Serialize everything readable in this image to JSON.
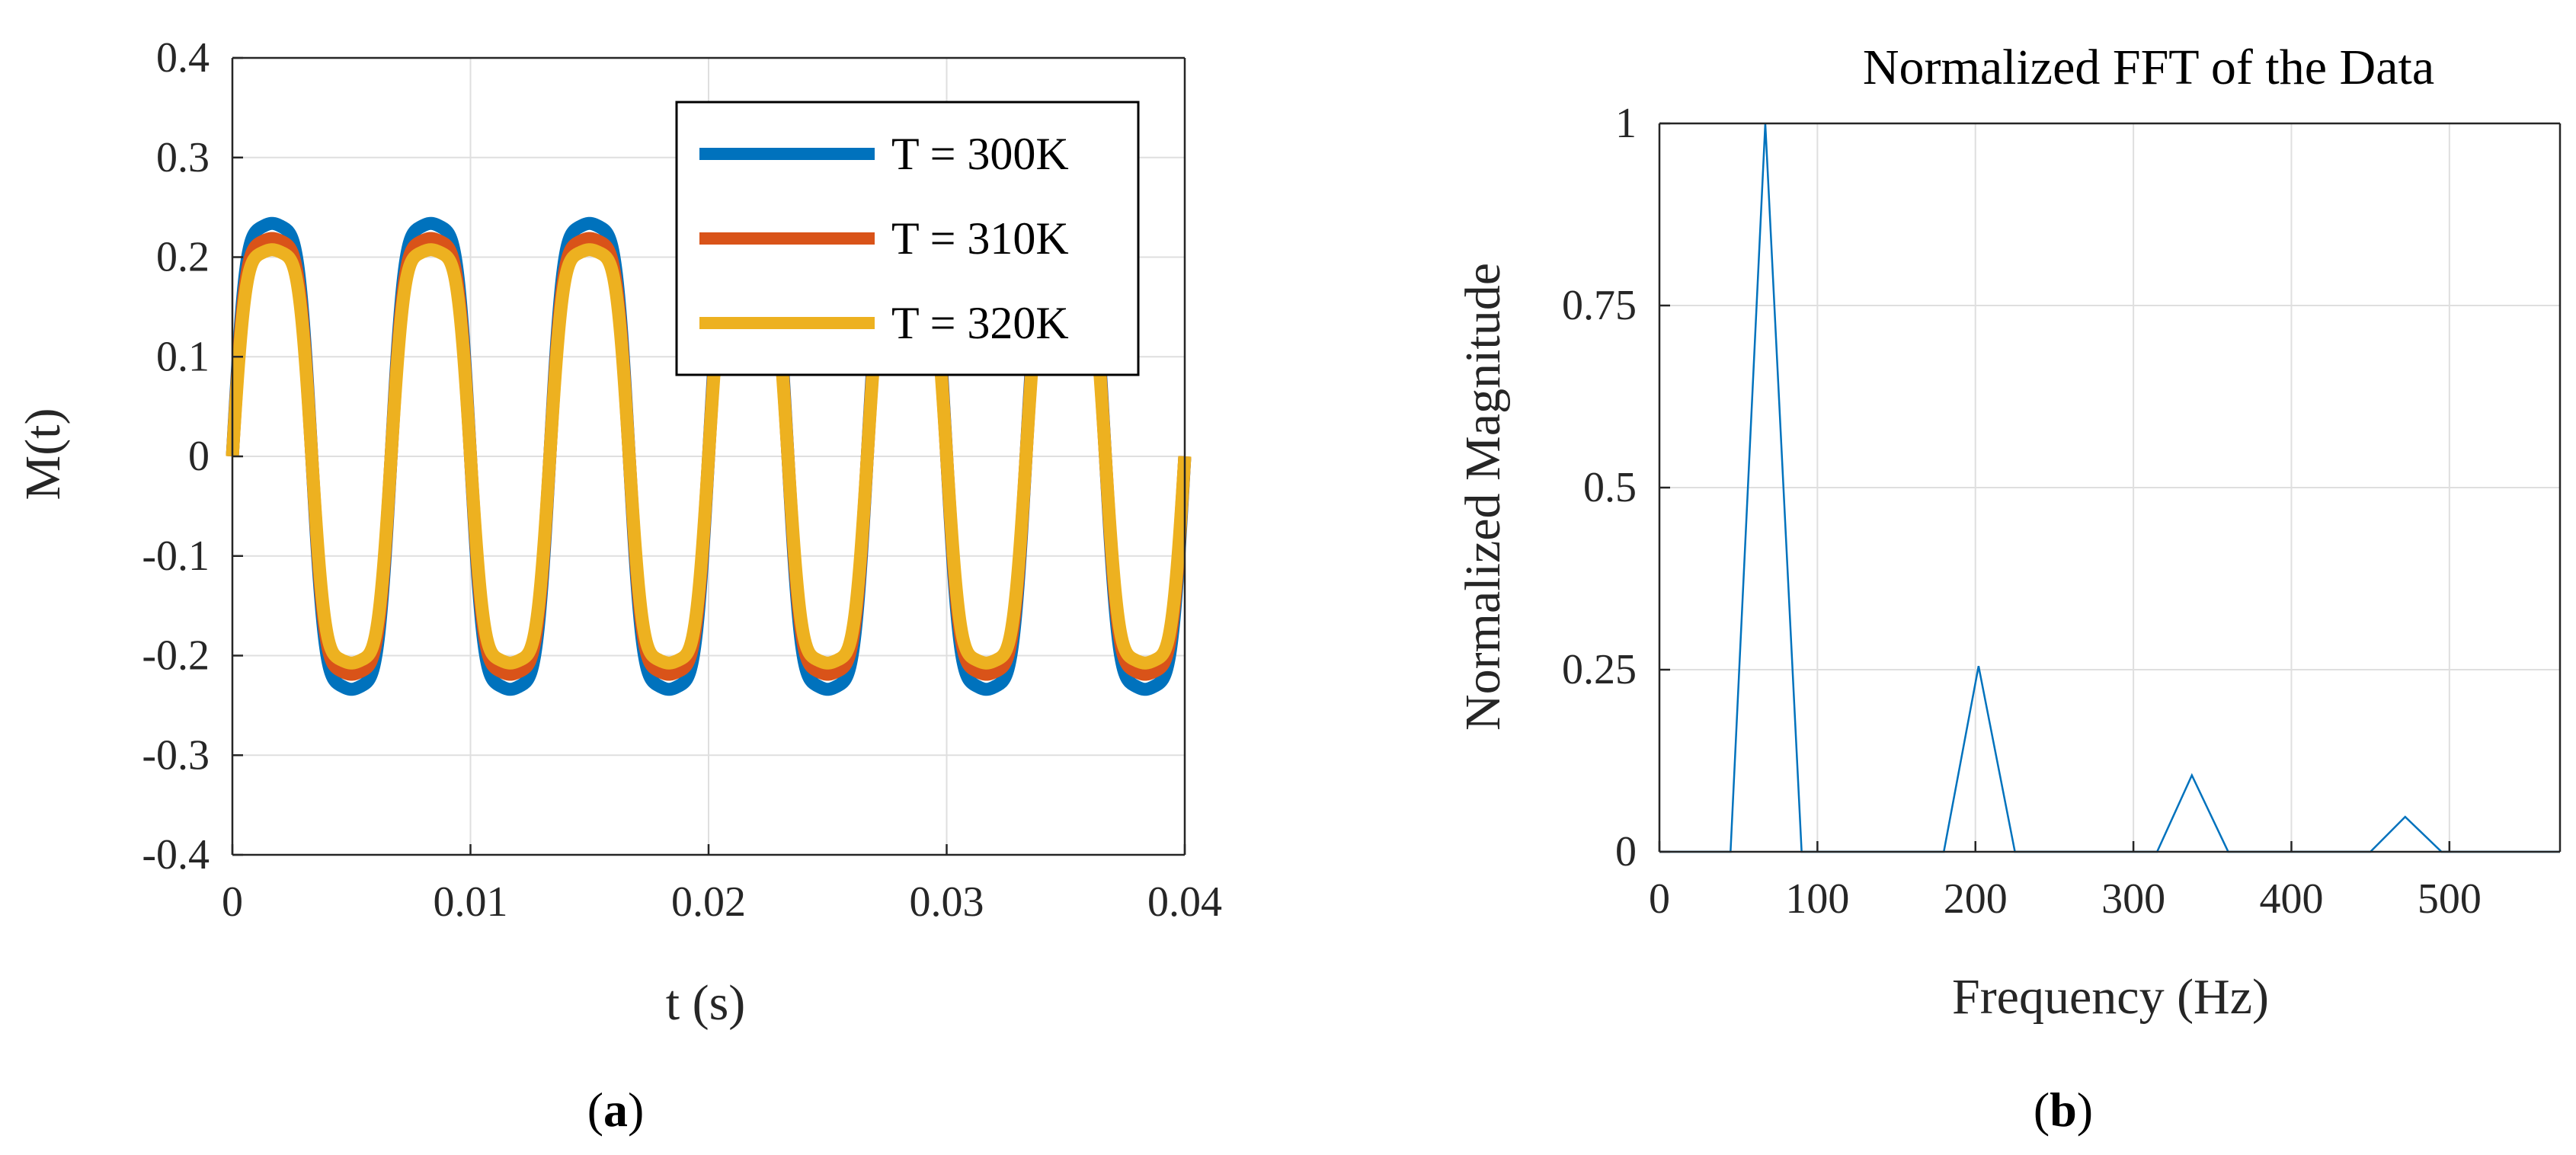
{
  "colors": {
    "series_blue": "#0072BD",
    "series_red": "#D95319",
    "series_yellow": "#EDB120",
    "fft_line": "#0072BD"
  },
  "chart_data": [
    {
      "id": "a",
      "type": "line",
      "title": "",
      "caption_letter": "a",
      "xlabel": "t (s)",
      "ylabel": "M(t)",
      "xlim": [
        0,
        0.04
      ],
      "ylim": [
        -0.4,
        0.4
      ],
      "xticks": [
        0,
        0.01,
        0.02,
        0.03,
        0.04
      ],
      "xtick_labels": [
        "0",
        "0.01",
        "0.02",
        "0.03",
        "0.04"
      ],
      "yticks": [
        -0.4,
        -0.3,
        -0.2,
        -0.1,
        0,
        0.1,
        0.2,
        0.3,
        0.4
      ],
      "ytick_labels": [
        "-0.4",
        "-0.3",
        "-0.2",
        "-0.1",
        "0",
        "0.1",
        "0.2",
        "0.3",
        "0.4"
      ],
      "grid": true,
      "legend_position": "top-right",
      "signal": {
        "frequency_hz": 150,
        "harmonic_ratios": [
          1,
          0.25,
          0.1,
          0.05
        ],
        "samples": 1600
      },
      "series": [
        {
          "name": "T = 300K",
          "amplitude": 0.31,
          "color": "#0072BD"
        },
        {
          "name": "T = 310K",
          "amplitude": 0.29,
          "color": "#D95319"
        },
        {
          "name": "T = 320K",
          "amplitude": 0.275,
          "color": "#EDB120"
        }
      ]
    },
    {
      "id": "b",
      "type": "line",
      "title": "Normalized FFT of the Data",
      "caption_letter": "b",
      "xlabel": "Frequency (Hz)",
      "ylabel": "Normalized Magnitude",
      "xlim": [
        0,
        570
      ],
      "ylim": [
        0,
        1
      ],
      "xticks": [
        0,
        100,
        200,
        300,
        400,
        500
      ],
      "xtick_labels": [
        "0",
        "100",
        "200",
        "300",
        "400",
        "500"
      ],
      "yticks": [
        0,
        0.25,
        0.5,
        0.75,
        1
      ],
      "ytick_labels": [
        "0",
        "0.25",
        "0.5",
        "0.75",
        "1"
      ],
      "grid": true,
      "series": [
        {
          "name": "FFT",
          "color": "#0072BD",
          "x": [
            0,
            45,
            67,
            90,
            180,
            202,
            225,
            315,
            337,
            360,
            450,
            472,
            495,
            570
          ],
          "y": [
            0,
            0,
            1.0,
            0,
            0,
            0.255,
            0,
            0,
            0.105,
            0,
            0,
            0.048,
            0,
            0
          ]
        }
      ]
    }
  ]
}
